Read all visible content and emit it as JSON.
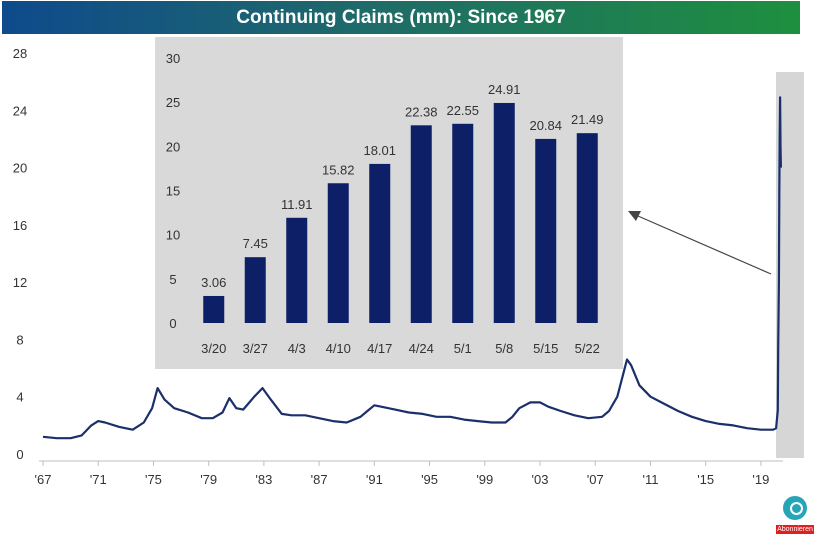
{
  "title": "Continuing Claims (mm): Since 1967",
  "colors": {
    "line": "#1b2f6b",
    "bar": "#0d1f66",
    "inset_bg": "#d9d9d9",
    "highlight_bg": "#d6d6d6",
    "axis_text": "#333333"
  },
  "logo": {
    "icon": "subscribe-logo-icon",
    "label": "Abonnieren"
  },
  "chart_data": [
    {
      "type": "line",
      "title": "Continuing Claims (mm): Since 1967",
      "xlim": [
        1967,
        2020.6
      ],
      "ylim": [
        0,
        28
      ],
      "y_ticks": [
        0,
        4,
        8,
        12,
        16,
        20,
        24,
        28
      ],
      "x_ticks": [
        1967,
        1971,
        1975,
        1979,
        1983,
        1987,
        1991,
        1995,
        1999,
        2003,
        2007,
        2011,
        2015,
        2019
      ],
      "x_tick_labels": [
        "'67",
        "'71",
        "'75",
        "'79",
        "'83",
        "'87",
        "'91",
        "'95",
        "'99",
        "'03",
        "'07",
        "'11",
        "'15",
        "'19"
      ],
      "grid": false,
      "series": [
        {
          "name": "Continuing Claims",
          "x": [
            1967.0,
            1968.0,
            1969.0,
            1969.8,
            1970.5,
            1971.0,
            1971.5,
            1972.5,
            1973.5,
            1974.3,
            1974.9,
            1975.3,
            1975.8,
            1976.5,
            1977.5,
            1978.5,
            1979.3,
            1980.0,
            1980.5,
            1981.0,
            1981.5,
            1982.3,
            1982.9,
            1983.5,
            1984.3,
            1985.0,
            1986.0,
            1987.0,
            1988.0,
            1989.0,
            1990.0,
            1990.5,
            1991.0,
            1991.5,
            1992.5,
            1993.5,
            1994.5,
            1995.5,
            1996.5,
            1997.5,
            1998.5,
            1999.5,
            2000.5,
            2001.0,
            2001.5,
            2002.3,
            2003.0,
            2003.6,
            2004.5,
            2005.5,
            2006.5,
            2007.5,
            2008.0,
            2008.6,
            2009.0,
            2009.3,
            2009.6,
            2010.2,
            2011.0,
            2012.0,
            2013.0,
            2014.0,
            2015.0,
            2016.0,
            2017.0,
            2018.0,
            2019.0,
            2019.9,
            2020.1,
            2020.22,
            2020.25,
            2020.3,
            2020.33,
            2020.36,
            2020.39,
            2020.42,
            2020.45
          ],
          "y": [
            1.2,
            1.1,
            1.1,
            1.3,
            2.0,
            2.3,
            2.2,
            1.9,
            1.7,
            2.2,
            3.2,
            4.6,
            3.8,
            3.2,
            2.9,
            2.5,
            2.5,
            2.9,
            3.9,
            3.2,
            3.1,
            4.0,
            4.6,
            3.8,
            2.8,
            2.7,
            2.7,
            2.5,
            2.3,
            2.2,
            2.6,
            3.0,
            3.4,
            3.3,
            3.1,
            2.9,
            2.8,
            2.6,
            2.6,
            2.4,
            2.3,
            2.2,
            2.2,
            2.6,
            3.2,
            3.6,
            3.6,
            3.3,
            3.0,
            2.7,
            2.5,
            2.6,
            3.0,
            4.0,
            5.5,
            6.6,
            6.2,
            4.8,
            4.0,
            3.5,
            3.0,
            2.6,
            2.3,
            2.1,
            2.0,
            1.8,
            1.7,
            1.7,
            1.8,
            3.06,
            7.45,
            11.91,
            18.01,
            22.38,
            24.91,
            21.49,
            20.0
          ]
        }
      ],
      "annotation": "arrow pointing from the 2020 spike to the inset weekly bar chart"
    },
    {
      "type": "bar",
      "title": "",
      "categories": [
        "3/20",
        "3/27",
        "4/3",
        "4/10",
        "4/17",
        "4/24",
        "5/1",
        "5/8",
        "5/15",
        "5/22"
      ],
      "values": [
        3.06,
        7.45,
        11.91,
        15.82,
        18.01,
        22.38,
        22.55,
        24.91,
        20.84,
        21.49
      ],
      "data_labels": [
        "3.06",
        "7.45",
        "11.91",
        "15.82",
        "18.01",
        "22.38",
        "22.55",
        "24.91",
        "20.84",
        "21.49"
      ],
      "ylim": [
        0,
        30
      ],
      "y_ticks": [
        0,
        5,
        10,
        15,
        20,
        25,
        30
      ],
      "xlabel": "",
      "ylabel": "",
      "grid": false
    }
  ]
}
